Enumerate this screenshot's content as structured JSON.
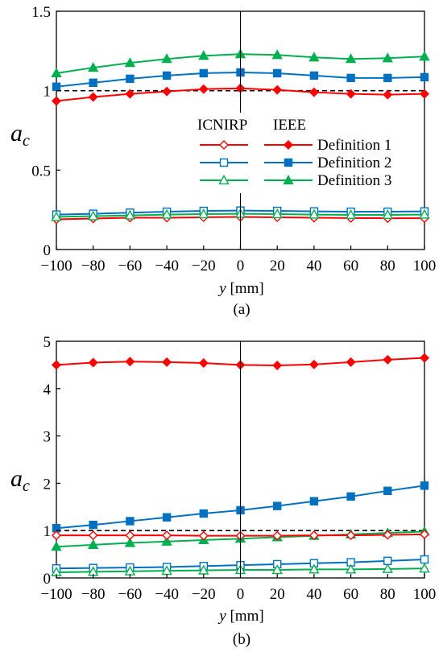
{
  "colors": {
    "definition_1": "#ff0000",
    "definition_2": "#0070c0",
    "definition_3": "#00b050",
    "reference": "#000000"
  },
  "chart_data": [
    {
      "type": "line",
      "caption": "(a)",
      "xlabel_var": "y",
      "xlabel_unit": " [mm]",
      "ylabel_main": "a",
      "ylabel_sub": "c",
      "x": [
        -100,
        -80,
        -60,
        -40,
        -20,
        0,
        20,
        40,
        60,
        80,
        100
      ],
      "xlim": [
        -100,
        100
      ],
      "ylim": [
        0,
        1.5
      ],
      "yticks": [
        0,
        0.5,
        1,
        1.5
      ],
      "ytick_labels": [
        "0",
        "0.5",
        "1",
        "1.5"
      ],
      "xtick_labels": [
        "−100",
        "−80",
        "−60",
        "−40",
        "−20",
        "0",
        "20",
        "40",
        "60",
        "80",
        "100"
      ],
      "reference_line": 1,
      "legend": {
        "header_icnirp": "ICNIRP",
        "header_ieee": "IEEE",
        "entries": [
          "Definition 1",
          "Definition 2",
          "Definition 3"
        ],
        "placement": "center-right"
      },
      "series": [
        {
          "name": "Definition 1",
          "group": "IEEE",
          "marker": "diamond",
          "filled": true,
          "color_key": "definition_1",
          "values": [
            0.935,
            0.96,
            0.98,
            0.995,
            1.01,
            1.015,
            1.005,
            0.99,
            0.98,
            0.975,
            0.98
          ]
        },
        {
          "name": "Definition 2",
          "group": "IEEE",
          "marker": "square",
          "filled": true,
          "color_key": "definition_2",
          "values": [
            1.025,
            1.05,
            1.075,
            1.095,
            1.11,
            1.115,
            1.11,
            1.095,
            1.08,
            1.08,
            1.085
          ]
        },
        {
          "name": "Definition 3",
          "group": "IEEE",
          "marker": "triangle",
          "filled": true,
          "color_key": "definition_3",
          "values": [
            1.11,
            1.145,
            1.175,
            1.2,
            1.22,
            1.23,
            1.225,
            1.21,
            1.2,
            1.205,
            1.215
          ]
        },
        {
          "name": "Definition 1",
          "group": "ICNIRP",
          "marker": "diamond",
          "filled": false,
          "color_key": "definition_1",
          "values": [
            0.19,
            0.195,
            0.2,
            0.2,
            0.203,
            0.205,
            0.203,
            0.2,
            0.198,
            0.197,
            0.197
          ]
        },
        {
          "name": "Definition 2",
          "group": "ICNIRP",
          "marker": "square",
          "filled": false,
          "color_key": "definition_2",
          "values": [
            0.22,
            0.225,
            0.232,
            0.238,
            0.243,
            0.245,
            0.243,
            0.24,
            0.238,
            0.238,
            0.24
          ]
        },
        {
          "name": "Definition 3",
          "group": "ICNIRP",
          "marker": "triangle",
          "filled": false,
          "color_key": "definition_3",
          "values": [
            0.205,
            0.21,
            0.215,
            0.22,
            0.223,
            0.225,
            0.223,
            0.22,
            0.218,
            0.218,
            0.22
          ]
        }
      ]
    },
    {
      "type": "line",
      "caption": "(b)",
      "xlabel_var": "y",
      "xlabel_unit": " [mm]",
      "ylabel_main": "a",
      "ylabel_sub": "c",
      "x": [
        -100,
        -80,
        -60,
        -40,
        -20,
        0,
        20,
        40,
        60,
        80,
        100
      ],
      "xlim": [
        -100,
        100
      ],
      "ylim": [
        0,
        5
      ],
      "yticks": [
        0,
        1,
        2,
        3,
        4,
        5
      ],
      "ytick_labels": [
        "0",
        "1",
        "2",
        "3",
        "4",
        "5"
      ],
      "xtick_labels": [
        "−100",
        "−80",
        "−60",
        "−40",
        "−20",
        "0",
        "20",
        "40",
        "60",
        "80",
        "100"
      ],
      "reference_line": 1,
      "series": [
        {
          "name": "Definition 1",
          "group": "IEEE",
          "marker": "diamond",
          "filled": true,
          "color_key": "definition_1",
          "values": [
            4.5,
            4.55,
            4.57,
            4.56,
            4.54,
            4.5,
            4.49,
            4.51,
            4.56,
            4.61,
            4.65
          ]
        },
        {
          "name": "Definition 2",
          "group": "IEEE",
          "marker": "square",
          "filled": true,
          "color_key": "definition_2",
          "values": [
            1.05,
            1.12,
            1.2,
            1.28,
            1.36,
            1.43,
            1.52,
            1.62,
            1.72,
            1.84,
            1.95
          ]
        },
        {
          "name": "Definition 3",
          "group": "IEEE",
          "marker": "triangle",
          "filled": true,
          "color_key": "definition_3",
          "values": [
            0.66,
            0.7,
            0.74,
            0.77,
            0.8,
            0.83,
            0.86,
            0.89,
            0.92,
            0.95,
            0.98
          ]
        },
        {
          "name": "Definition 1",
          "group": "ICNIRP",
          "marker": "diamond",
          "filled": false,
          "color_key": "definition_1",
          "values": [
            0.9,
            0.9,
            0.9,
            0.9,
            0.89,
            0.89,
            0.89,
            0.9,
            0.9,
            0.91,
            0.92
          ]
        },
        {
          "name": "Definition 2",
          "group": "ICNIRP",
          "marker": "square",
          "filled": false,
          "color_key": "definition_2",
          "values": [
            0.2,
            0.21,
            0.22,
            0.23,
            0.25,
            0.27,
            0.29,
            0.31,
            0.33,
            0.36,
            0.39
          ]
        },
        {
          "name": "Definition 3",
          "group": "ICNIRP",
          "marker": "triangle",
          "filled": false,
          "color_key": "definition_3",
          "values": [
            0.12,
            0.13,
            0.14,
            0.15,
            0.16,
            0.17,
            0.17,
            0.18,
            0.18,
            0.19,
            0.2
          ]
        }
      ]
    }
  ]
}
